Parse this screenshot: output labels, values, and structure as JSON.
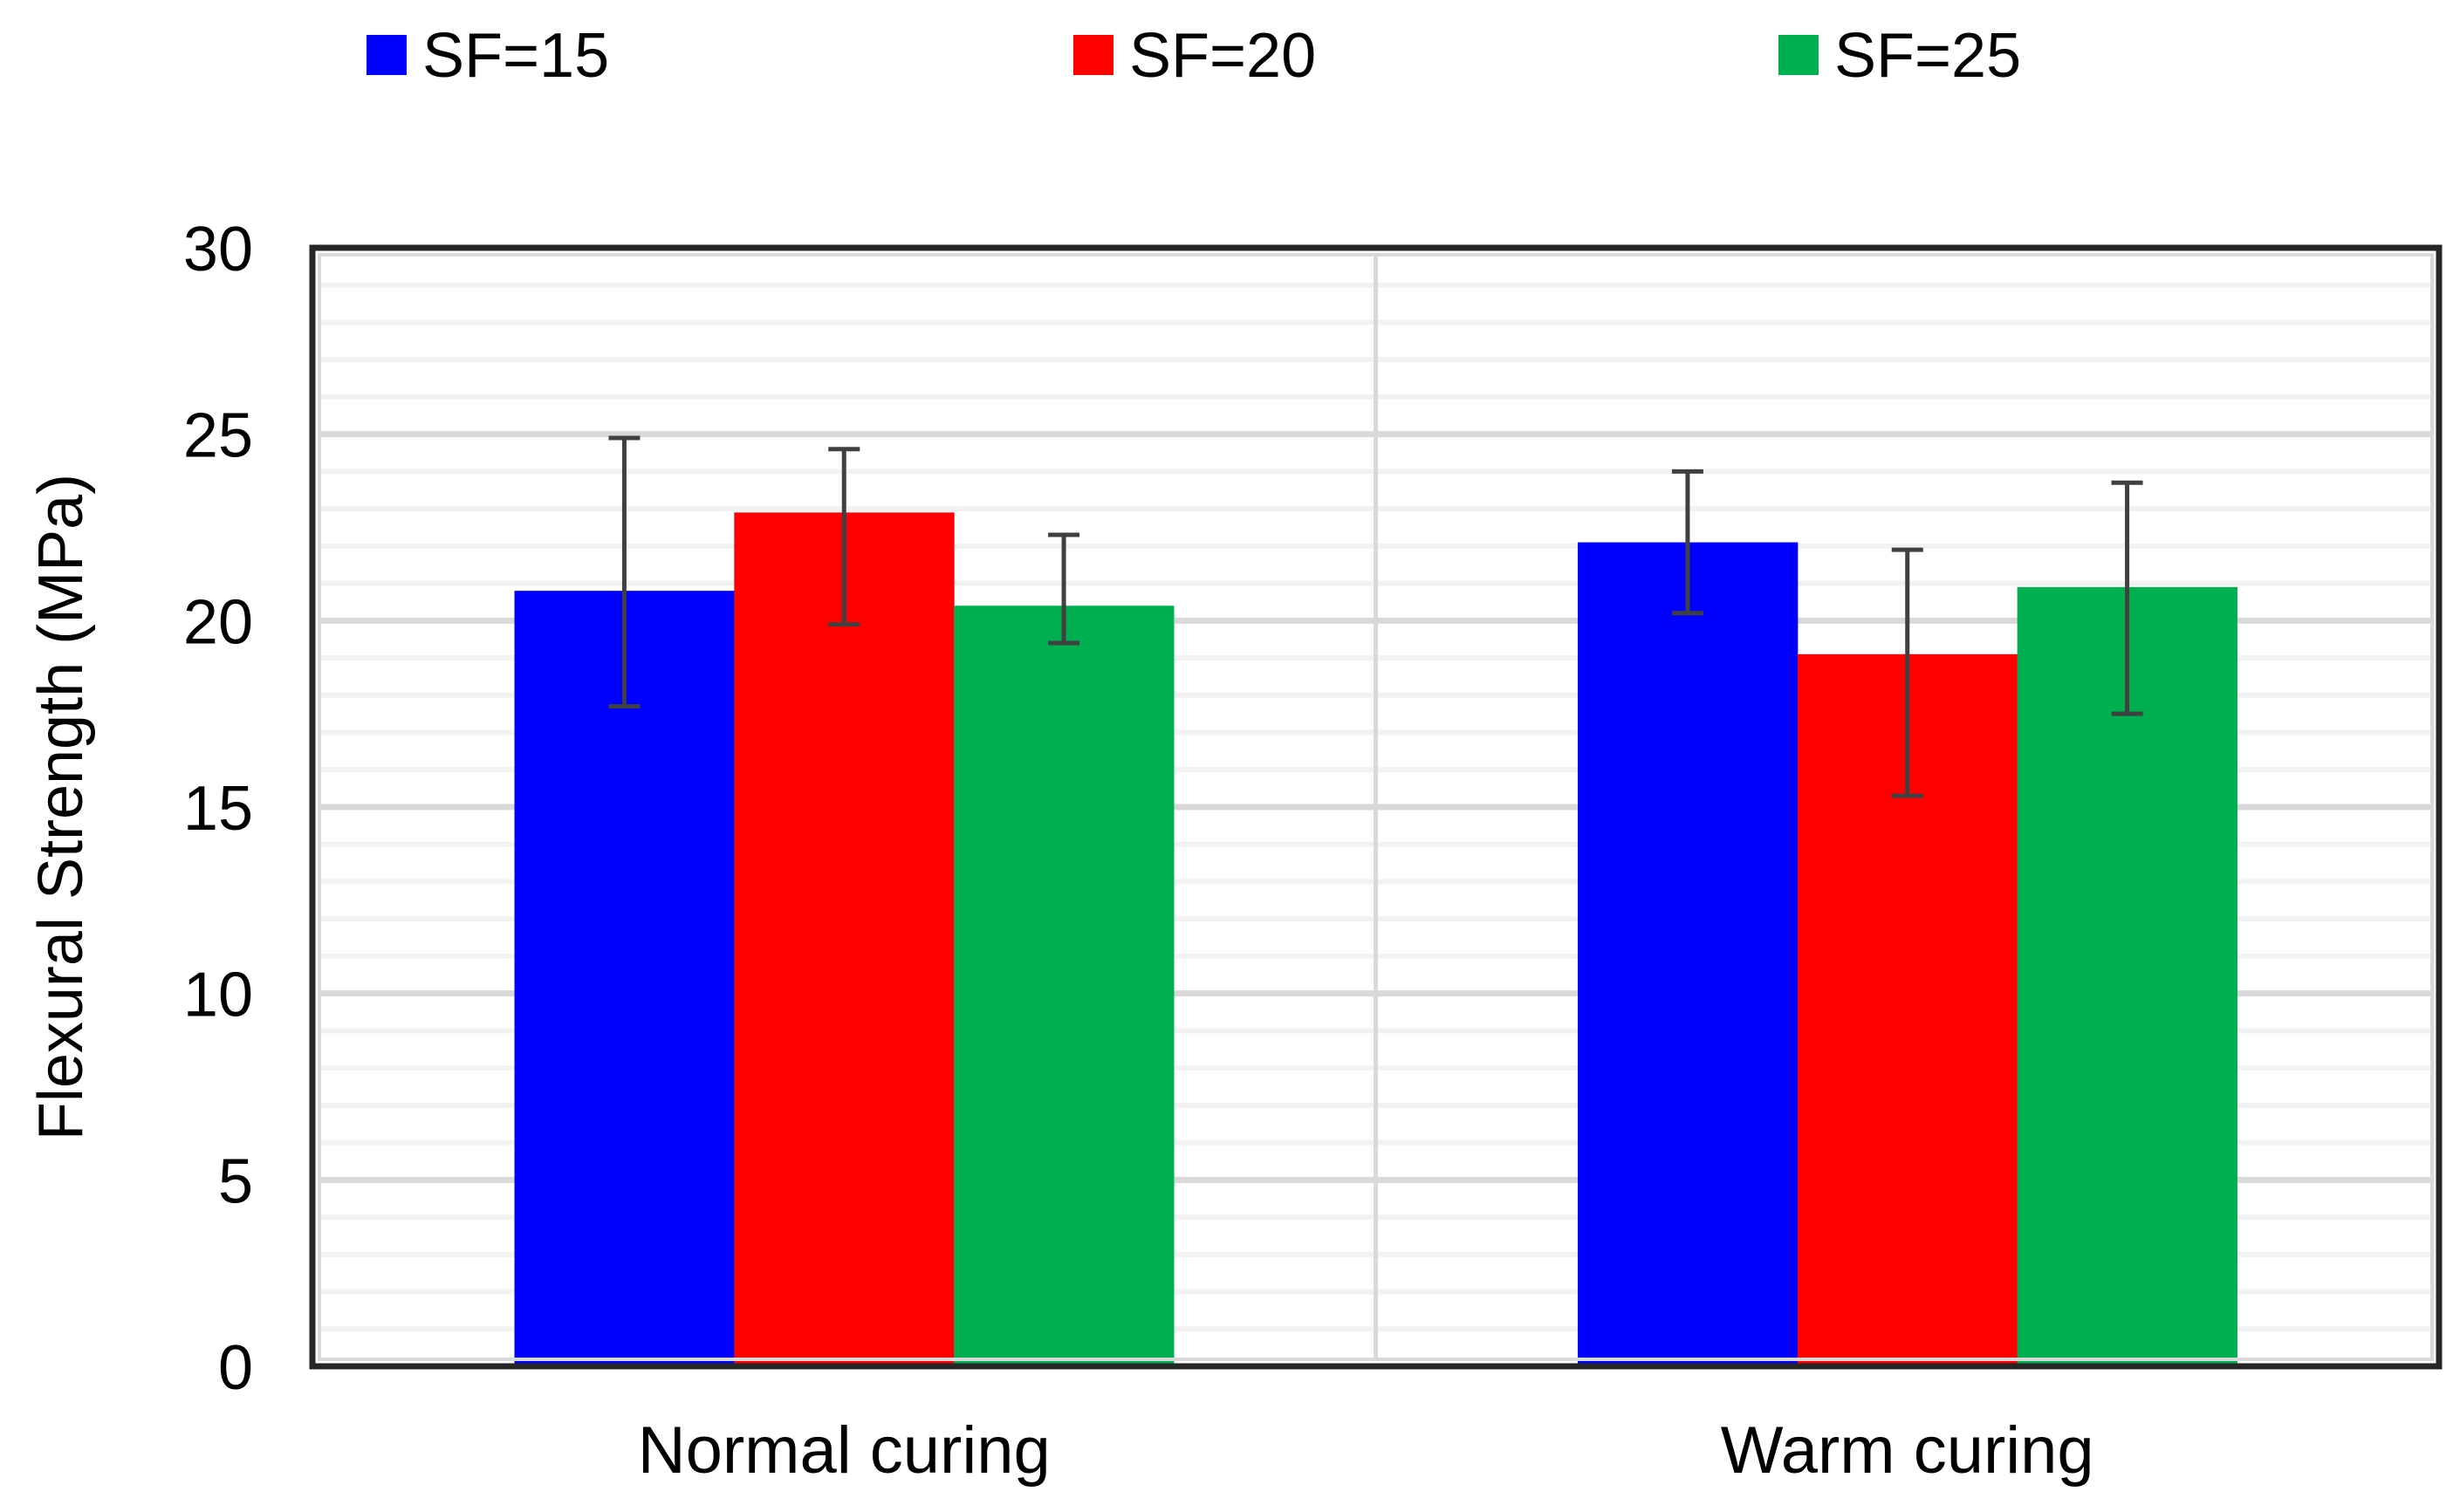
{
  "chart_data": {
    "type": "bar",
    "title": "",
    "xlabel": "",
    "ylabel": "Flexural Strength (MPa)",
    "ylim": [
      0,
      30
    ],
    "yticks": [
      0,
      5,
      10,
      15,
      20,
      25,
      30
    ],
    "grid": true,
    "legend_position": "top",
    "categories": [
      "Normal curing",
      "Warm curing"
    ],
    "series": [
      {
        "name": "SF=15",
        "color": "#0000FF",
        "values": [
          20.8,
          22.1
        ],
        "error_low": [
          17.7,
          20.2
        ],
        "error_high": [
          24.9,
          24.0
        ]
      },
      {
        "name": "SF=20",
        "color": "#FF0000",
        "values": [
          22.9,
          19.1
        ],
        "error_low": [
          19.9,
          15.3
        ],
        "error_high": [
          24.6,
          21.9
        ]
      },
      {
        "name": "SF=25",
        "color": "#00B050",
        "values": [
          20.4,
          20.9
        ],
        "error_low": [
          19.4,
          17.5
        ],
        "error_high": [
          22.3,
          23.7
        ]
      }
    ]
  }
}
